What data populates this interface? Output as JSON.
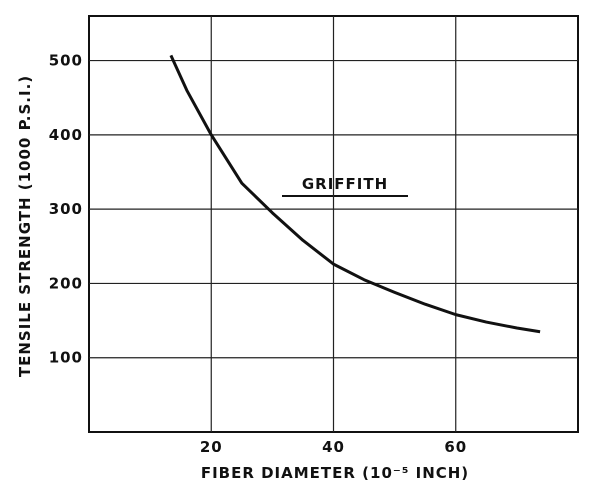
{
  "chart_data": {
    "type": "line",
    "xlabel": "FIBER   DIAMETER (10⁻⁵ INCH)",
    "ylabel": "TENSILE    STRENGTH (1000 P.S.I.)",
    "annotation": "GRIFFITH",
    "x": [
      13.4,
      16,
      20,
      25,
      30,
      35,
      40,
      45,
      50,
      55,
      60,
      65,
      70,
      73.8
    ],
    "series": [
      {
        "color": "#111111",
        "values": [
          507,
          460,
          400,
          335,
          295,
          258,
          226,
          205,
          188,
          172,
          158,
          148,
          140,
          135
        ]
      }
    ],
    "xlim": [
      0,
      80
    ],
    "xticks": [
      20,
      40,
      60
    ],
    "ylim": [
      0,
      560
    ],
    "yticks": [
      100,
      200,
      300,
      400,
      500
    ],
    "grid": true
  }
}
